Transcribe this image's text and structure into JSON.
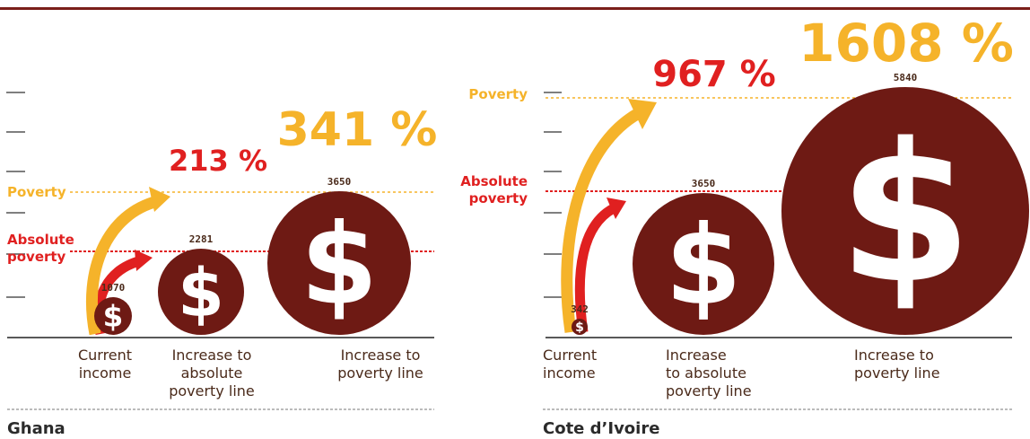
{
  "colors": {
    "dark_red": "#6e1a14",
    "red": "#e02020",
    "orange": "#f5b32a",
    "top_rule": "#7a1f1a",
    "text_dark": "#4a2a1a",
    "tick": "#555555"
  },
  "icons": {
    "coin": "dollar-coin-icon",
    "arrow": "curved-arrow-icon"
  },
  "chart_data": [
    {
      "type": "bubble",
      "country": "Ghana",
      "reference_lines": {
        "poverty": "Poverty",
        "absolute_poverty": [
          "Absolute",
          "poverty"
        ]
      },
      "items": [
        {
          "category": [
            "Current",
            "income"
          ],
          "value": 1070
        },
        {
          "category": [
            "Increase to",
            "absolute",
            "poverty line"
          ],
          "value": 2281
        },
        {
          "category": [
            "Increase to",
            "poverty line"
          ],
          "value": 3650
        }
      ],
      "increases": [
        {
          "label": "213 %",
          "color": "red",
          "target": "absolute_poverty"
        },
        {
          "label": "341 %",
          "color": "orange",
          "target": "poverty"
        }
      ]
    },
    {
      "type": "bubble",
      "country": "Cote d’Ivoire",
      "reference_lines": {
        "poverty": "Poverty",
        "absolute_poverty": [
          "Absolute",
          "poverty"
        ]
      },
      "items": [
        {
          "category": [
            "Current",
            "income"
          ],
          "value": 342
        },
        {
          "category": [
            "Increase",
            "to absolute",
            "poverty line"
          ],
          "value": 3650
        },
        {
          "category": [
            "Increase to",
            "poverty line"
          ],
          "value": 5840
        }
      ],
      "increases": [
        {
          "label": "967 %",
          "color": "red",
          "target": "absolute_poverty"
        },
        {
          "label": "1608 %",
          "color": "orange",
          "target": "poverty"
        }
      ]
    }
  ]
}
